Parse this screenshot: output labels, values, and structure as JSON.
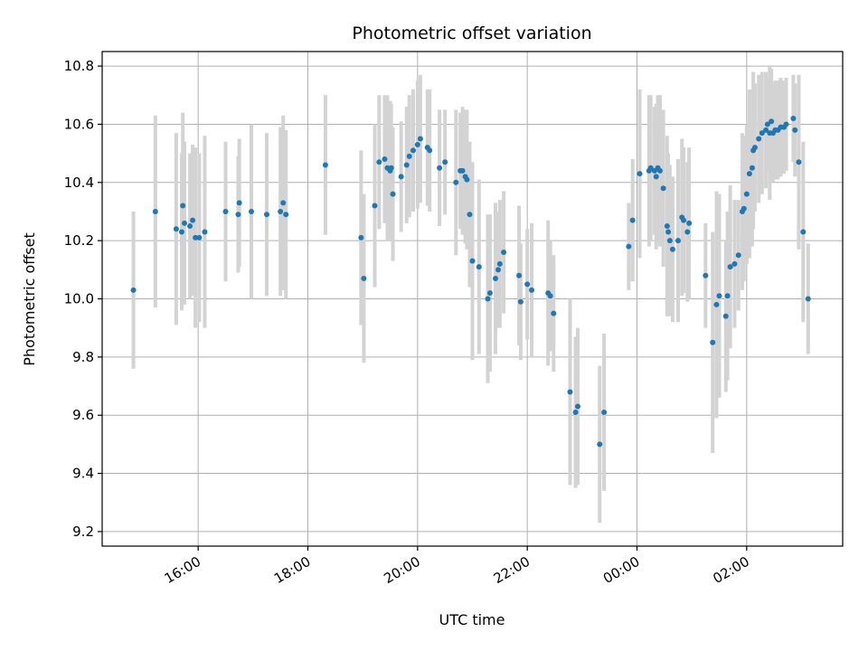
{
  "chart_data": {
    "type": "scatter",
    "title": "Photometric offset variation",
    "xlabel": "UTC time",
    "ylabel": "Photometric offset",
    "x_unit": "hours",
    "xlim": [
      14.25,
      27.75
    ],
    "ylim": [
      9.15,
      10.85
    ],
    "grid": true,
    "legend": "none",
    "x_ticks": [
      {
        "value": 16,
        "label": "16:00"
      },
      {
        "value": 18,
        "label": "18:00"
      },
      {
        "value": 20,
        "label": "20:00"
      },
      {
        "value": 22,
        "label": "22:00"
      },
      {
        "value": 24,
        "label": "00:00"
      },
      {
        "value": 26,
        "label": "02:00"
      }
    ],
    "y_ticks": [
      {
        "value": 9.2,
        "label": "9.2"
      },
      {
        "value": 9.4,
        "label": "9.4"
      },
      {
        "value": 9.6,
        "label": "9.6"
      },
      {
        "value": 9.8,
        "label": "9.8"
      },
      {
        "value": 10.0,
        "label": "10.0"
      },
      {
        "value": 10.2,
        "label": "10.2"
      },
      {
        "value": 10.4,
        "label": "10.4"
      },
      {
        "value": 10.6,
        "label": "10.6"
      },
      {
        "value": 10.8,
        "label": "10.8"
      }
    ],
    "colors": {
      "point": "#1f77b4",
      "errorbar": "#d3d3d3",
      "grid": "#b0b0b0"
    },
    "series": [
      {
        "x": [
          14.82,
          15.22,
          15.6,
          15.7,
          15.72,
          15.75,
          15.85,
          15.9,
          15.95,
          16.02,
          16.12,
          16.5,
          16.73,
          16.75,
          16.97,
          17.25,
          17.5,
          17.55,
          17.6,
          18.32,
          18.97,
          19.02,
          19.22,
          19.3,
          19.4,
          19.45,
          19.5,
          19.52,
          19.55,
          19.7,
          19.8,
          19.85,
          19.92,
          20.0,
          20.05,
          20.18,
          20.22,
          20.4,
          20.5,
          20.7,
          20.78,
          20.82,
          20.87,
          20.9,
          20.95,
          21.0,
          21.12,
          21.28,
          21.32,
          21.42,
          21.47,
          21.5,
          21.57,
          21.85,
          21.88,
          22.0,
          22.08,
          22.38,
          22.42,
          22.48,
          22.78,
          22.88,
          22.92,
          23.32,
          23.4,
          23.85,
          23.92,
          24.05,
          24.22,
          24.25,
          24.32,
          24.35,
          24.38,
          24.42,
          24.48,
          24.55,
          24.57,
          24.6,
          24.65,
          24.75,
          24.82,
          24.85,
          24.92,
          24.95,
          25.25,
          25.38,
          25.45,
          25.5,
          25.62,
          25.65,
          25.7,
          25.78,
          25.85,
          25.92,
          25.95,
          26.0,
          26.05,
          26.1,
          26.12,
          26.15,
          26.22,
          26.28,
          26.35,
          26.38,
          26.42,
          26.45,
          26.48,
          26.52,
          26.57,
          26.62,
          26.68,
          26.72,
          26.85,
          26.88,
          26.95,
          27.03,
          27.12
        ],
        "y": [
          10.03,
          10.3,
          10.24,
          10.23,
          10.32,
          10.26,
          10.25,
          10.27,
          10.21,
          10.21,
          10.23,
          10.3,
          10.29,
          10.33,
          10.3,
          10.29,
          10.3,
          10.33,
          10.29,
          10.46,
          10.21,
          10.07,
          10.32,
          10.47,
          10.48,
          10.45,
          10.44,
          10.45,
          10.36,
          10.42,
          10.46,
          10.49,
          10.51,
          10.53,
          10.55,
          10.52,
          10.51,
          10.45,
          10.47,
          10.4,
          10.44,
          10.44,
          10.42,
          10.41,
          10.29,
          10.13,
          10.11,
          10.0,
          10.02,
          10.07,
          10.1,
          10.12,
          10.16,
          10.08,
          9.99,
          10.05,
          10.03,
          10.02,
          10.01,
          9.95,
          9.68,
          9.61,
          9.63,
          9.5,
          9.61,
          10.18,
          10.27,
          10.43,
          10.44,
          10.45,
          10.44,
          10.42,
          10.45,
          10.44,
          10.38,
          10.25,
          10.23,
          10.2,
          10.17,
          10.2,
          10.28,
          10.27,
          10.23,
          10.26,
          10.08,
          9.85,
          9.98,
          10.01,
          9.94,
          10.01,
          10.11,
          10.12,
          10.15,
          10.3,
          10.31,
          10.36,
          10.43,
          10.45,
          10.51,
          10.52,
          10.55,
          10.57,
          10.58,
          10.6,
          10.57,
          10.61,
          10.57,
          10.58,
          10.58,
          10.59,
          10.59,
          10.6,
          10.62,
          10.58,
          10.47,
          10.23,
          10.0
        ],
        "err": [
          0.27,
          0.33,
          0.33,
          0.27,
          0.32,
          0.28,
          0.25,
          0.26,
          0.31,
          0.29,
          0.33,
          0.24,
          0.2,
          0.22,
          0.3,
          0.28,
          0.29,
          0.3,
          0.29,
          0.24,
          0.3,
          0.29,
          0.28,
          0.23,
          0.22,
          0.25,
          0.24,
          0.22,
          0.23,
          0.19,
          0.2,
          0.21,
          0.21,
          0.22,
          0.22,
          0.2,
          0.21,
          0.2,
          0.18,
          0.25,
          0.2,
          0.22,
          0.23,
          0.24,
          0.25,
          0.34,
          0.3,
          0.29,
          0.27,
          0.26,
          0.2,
          0.22,
          0.21,
          0.24,
          0.2,
          0.19,
          0.23,
          0.25,
          0.19,
          0.2,
          0.32,
          0.26,
          0.27,
          0.27,
          0.27,
          0.15,
          0.21,
          0.29,
          0.26,
          0.25,
          0.22,
          0.25,
          0.25,
          0.26,
          0.27,
          0.31,
          0.27,
          0.26,
          0.25,
          0.28,
          0.27,
          0.25,
          0.24,
          0.26,
          0.18,
          0.38,
          0.39,
          0.35,
          0.26,
          0.29,
          0.28,
          0.22,
          0.19,
          0.27,
          0.25,
          0.24,
          0.29,
          0.27,
          0.27,
          0.22,
          0.22,
          0.21,
          0.2,
          0.16,
          0.23,
          0.18,
          0.17,
          0.17,
          0.17,
          0.17,
          0.16,
          0.16,
          0.15,
          0.16,
          0.3,
          0.31,
          0.19
        ]
      }
    ]
  }
}
